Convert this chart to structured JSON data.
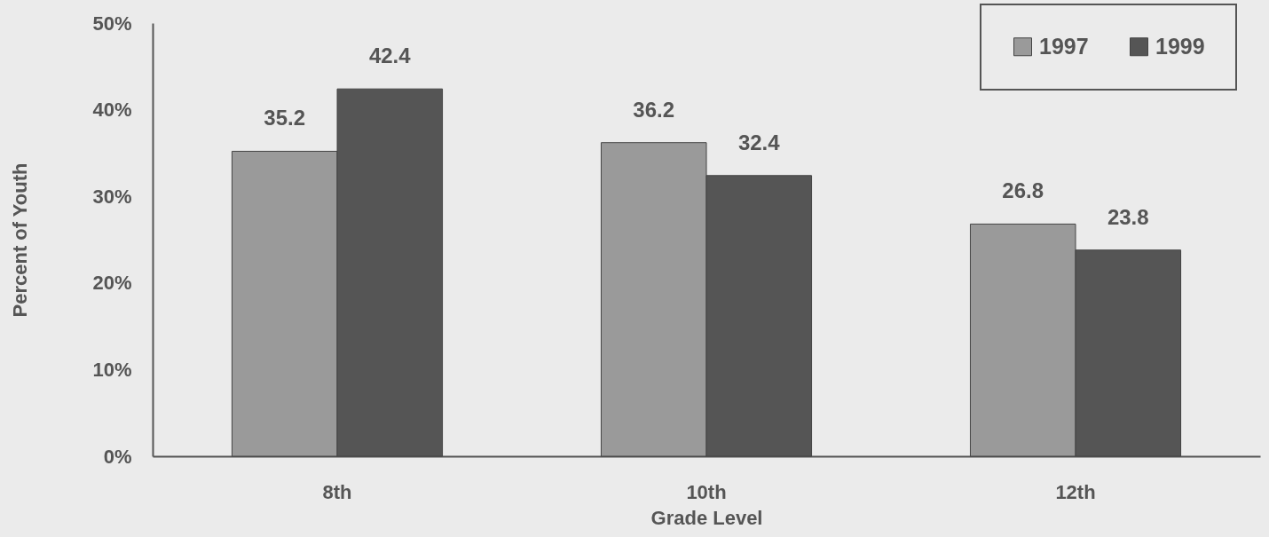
{
  "chart_data": {
    "type": "bar",
    "xlabel": "Grade Level",
    "ylabel": "Percent of Youth",
    "categories": [
      "8th",
      "10th",
      "12th"
    ],
    "series": [
      {
        "name": "1997",
        "color": "#9a9a9a",
        "values": [
          35.2,
          36.2,
          26.8
        ]
      },
      {
        "name": "1999",
        "color": "#555555",
        "values": [
          42.4,
          32.4,
          23.8
        ]
      }
    ],
    "ylim": [
      0,
      50
    ],
    "yticks": [
      {
        "value": 0,
        "label": "0%"
      },
      {
        "value": 10,
        "label": "10%"
      },
      {
        "value": 20,
        "label": "20%"
      },
      {
        "value": 30,
        "label": "30%"
      },
      {
        "value": 40,
        "label": "40%"
      },
      {
        "value": 50,
        "label": "50%"
      }
    ],
    "data_labels": true,
    "legend": "top right",
    "grid": false
  }
}
